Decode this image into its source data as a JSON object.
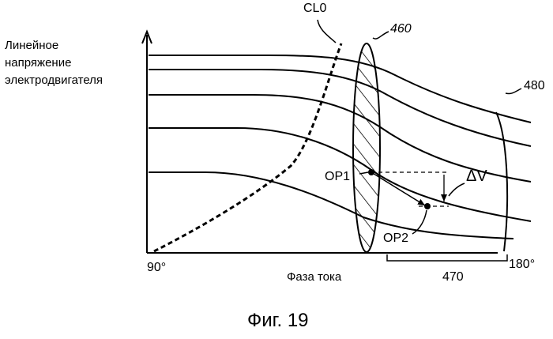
{
  "figure": {
    "caption": "Фиг. 19",
    "y_axis_label_lines": [
      "Линейное",
      "напряжение",
      "электродвигателя"
    ],
    "x_axis_label": "Фаза тока",
    "x_min_label": "90°",
    "x_max_label": "180°",
    "labels": {
      "cl0": "CL0",
      "region_460": "460",
      "range_470": "470",
      "curves_480": "480",
      "op1": "OP1",
      "op2": "OP2",
      "delta_v": "ΔV"
    }
  }
}
